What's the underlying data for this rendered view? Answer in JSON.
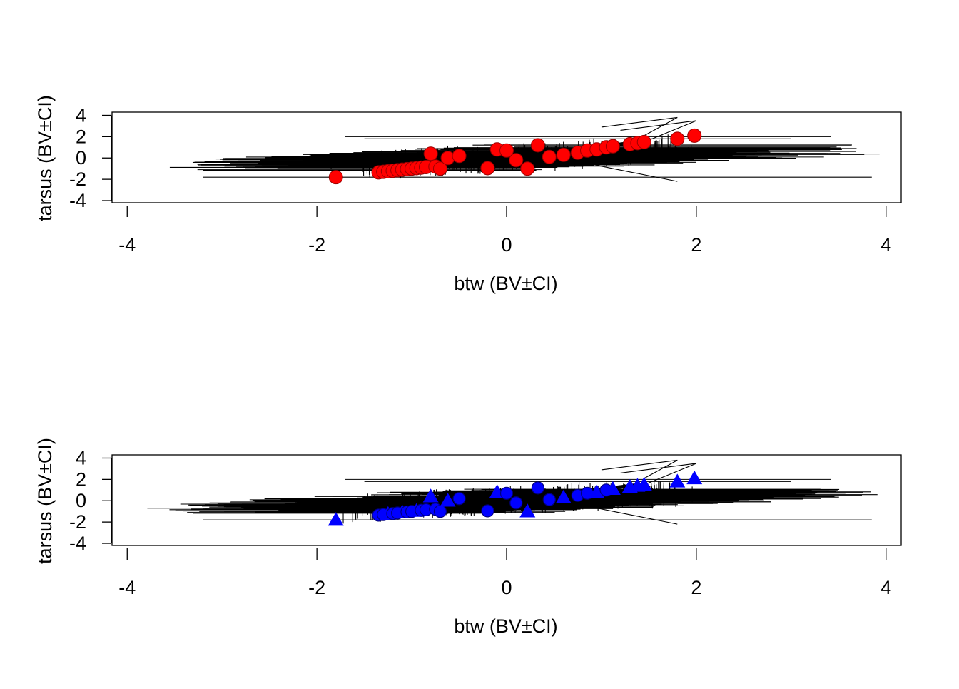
{
  "chart_data": [
    {
      "type": "scatter",
      "xlabel": "btw (BV±CI)",
      "ylabel": "tarsus (BV±CI)",
      "xlim": [
        -4.16,
        4.16
      ],
      "ylim": [
        -4.2,
        4.3
      ],
      "x_ticks": [
        "-4",
        "-2",
        "0",
        "2",
        "4"
      ],
      "y_ticks": [
        "-4",
        "-2",
        "0",
        "2",
        "4"
      ],
      "grid": false,
      "marker": "filled circle",
      "marker_color": "#ff0000",
      "error_bars": "horizontal and vertical confidence intervals around each point, drawn in black",
      "x": [
        -1.8,
        -1.35,
        -1.3,
        -1.25,
        -1.2,
        -1.15,
        -1.1,
        -1.05,
        -1.0,
        -0.95,
        -0.9,
        -0.85,
        -0.8,
        -0.75,
        -0.7,
        -0.62,
        -0.5,
        -0.2,
        -0.1,
        0.0,
        0.1,
        0.22,
        0.33,
        0.45,
        0.6,
        0.75,
        0.85,
        0.95,
        1.05,
        1.12,
        1.3,
        1.38,
        1.45,
        1.8,
        1.98
      ],
      "y": [
        -1.8,
        -1.35,
        -1.3,
        -1.25,
        -1.2,
        -1.15,
        -1.1,
        -1.05,
        -1.0,
        -0.95,
        -0.9,
        -0.85,
        0.4,
        -0.8,
        -1.0,
        0.0,
        0.2,
        -0.95,
        0.8,
        0.7,
        -0.2,
        -1.0,
        1.2,
        0.1,
        0.3,
        0.5,
        0.7,
        0.8,
        1.0,
        1.1,
        1.3,
        1.4,
        1.5,
        1.8,
        2.1
      ]
    },
    {
      "type": "scatter",
      "xlabel": "btw (BV±CI)",
      "ylabel": "tarsus (BV±CI)",
      "xlim": [
        -4.16,
        4.16
      ],
      "ylim": [
        -4.2,
        4.3
      ],
      "x_ticks": [
        "-4",
        "-2",
        "0",
        "2",
        "4"
      ],
      "y_ticks": [
        "-4",
        "-2",
        "0",
        "2",
        "4"
      ],
      "grid": false,
      "marker": "filled triangle (with open circles for the central points)",
      "marker_color": "#0000ff",
      "error_bars": "horizontal and vertical confidence intervals around each point, drawn in black",
      "x": [
        -1.8,
        -1.35,
        -1.3,
        -1.25,
        -1.2,
        -1.15,
        -1.1,
        -1.05,
        -1.0,
        -0.95,
        -0.9,
        -0.85,
        -0.8,
        -0.75,
        -0.7,
        -0.62,
        -0.5,
        -0.2,
        -0.1,
        0.0,
        0.1,
        0.22,
        0.33,
        0.45,
        0.6,
        0.75,
        0.85,
        0.95,
        1.05,
        1.12,
        1.3,
        1.38,
        1.45,
        1.8,
        1.98
      ],
      "y": [
        -1.8,
        -1.35,
        -1.3,
        -1.25,
        -1.2,
        -1.15,
        -1.1,
        -1.05,
        -1.0,
        -0.95,
        -0.9,
        -0.85,
        0.4,
        -0.8,
        -1.0,
        0.0,
        0.2,
        -0.95,
        0.8,
        0.7,
        -0.2,
        -1.0,
        1.2,
        0.1,
        0.3,
        0.5,
        0.7,
        0.8,
        1.0,
        1.1,
        1.3,
        1.4,
        1.5,
        1.8,
        2.1
      ]
    }
  ]
}
